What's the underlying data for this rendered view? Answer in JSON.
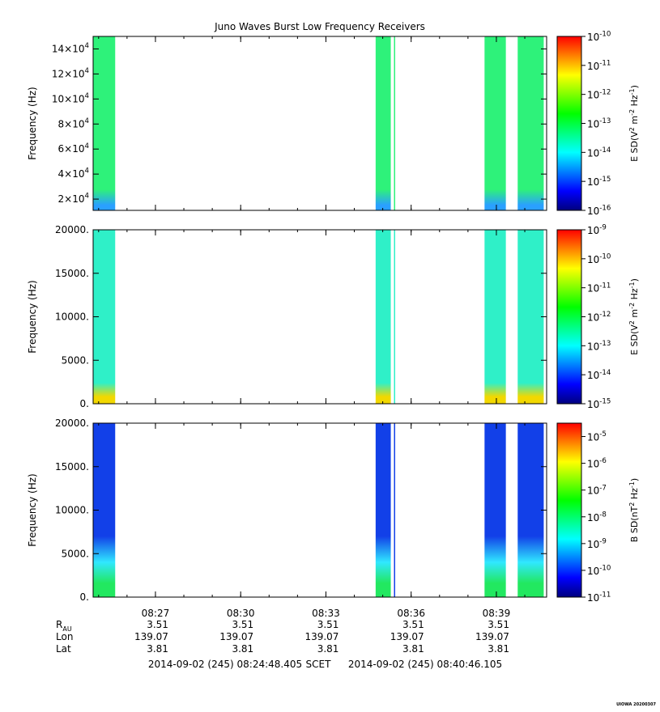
{
  "title": "Juno Waves Burst Low Frequency Receivers",
  "stamp": "UIOWA 20200307",
  "chart_data": [
    {
      "type": "heatmap",
      "name": "upper-panel",
      "ylabel": "Frequency (Hz)",
      "ylim": [
        11000,
        150000
      ],
      "yticks": [
        {
          "value": 20000,
          "base": "2×10",
          "exp": "4"
        },
        {
          "value": 40000,
          "base": "4×10",
          "exp": "4"
        },
        {
          "value": 60000,
          "base": "6×10",
          "exp": "4"
        },
        {
          "value": 80000,
          "base": "8×10",
          "exp": "4"
        },
        {
          "value": 100000,
          "base": "10×10",
          "exp": "4"
        },
        {
          "value": 120000,
          "base": "12×10",
          "exp": "4"
        },
        {
          "value": 140000,
          "base": "14×10",
          "exp": "4"
        }
      ],
      "colorbar": {
        "label": "E SD(V² m⁻² Hz⁻¹)",
        "label_parts": [
          "E SD(V",
          "2",
          " m",
          "-2",
          " Hz",
          "-1",
          ")"
        ],
        "log_min": -16,
        "log_max": -10,
        "ticks": [
          {
            "base": "10",
            "exp": "-10",
            "value": -10
          },
          {
            "base": "10",
            "exp": "-11",
            "value": -11
          },
          {
            "base": "10",
            "exp": "-12",
            "value": -12
          },
          {
            "base": "10",
            "exp": "-13",
            "value": -13
          },
          {
            "base": "10",
            "exp": "-14",
            "value": -14
          },
          {
            "base": "10",
            "exp": "-15",
            "value": -15
          },
          {
            "base": "10",
            "exp": "-16",
            "value": -16
          }
        ]
      },
      "fill_color": "#2ef27a",
      "bottom_color": "#2aa0ff"
    },
    {
      "type": "heatmap",
      "name": "middle-panel",
      "ylabel": "Frequency (Hz)",
      "ylim": [
        0,
        20000
      ],
      "yticks": [
        {
          "value": 0,
          "label": "0."
        },
        {
          "value": 5000,
          "label": "5000."
        },
        {
          "value": 10000,
          "label": "10000."
        },
        {
          "value": 15000,
          "label": "15000."
        },
        {
          "value": 20000,
          "label": "20000."
        }
      ],
      "colorbar": {
        "label": "E SD(V² m⁻² Hz⁻¹)",
        "label_parts": [
          "E SD(V",
          "2",
          " m",
          "-2",
          " Hz",
          "-1",
          ")"
        ],
        "log_min": -15,
        "log_max": -9,
        "ticks": [
          {
            "base": "10",
            "exp": "-9",
            "value": -9
          },
          {
            "base": "10",
            "exp": "-10",
            "value": -10
          },
          {
            "base": "10",
            "exp": "-11",
            "value": -11
          },
          {
            "base": "10",
            "exp": "-12",
            "value": -12
          },
          {
            "base": "10",
            "exp": "-13",
            "value": -13
          },
          {
            "base": "10",
            "exp": "-14",
            "value": -14
          },
          {
            "base": "10",
            "exp": "-15",
            "value": -15
          }
        ]
      },
      "fill_color": "#2ff0c8",
      "bottom_color": "#f2d800"
    },
    {
      "type": "heatmap",
      "name": "lower-panel",
      "ylabel": "Frequency (Hz)",
      "ylim": [
        0,
        20000
      ],
      "yticks": [
        {
          "value": 0,
          "label": "0."
        },
        {
          "value": 5000,
          "label": "5000."
        },
        {
          "value": 10000,
          "label": "10000."
        },
        {
          "value": 15000,
          "label": "15000."
        },
        {
          "value": 20000,
          "label": "20000."
        }
      ],
      "colorbar": {
        "label": "B SD(nT² Hz⁻¹)",
        "label_parts": [
          "B SD(nT",
          "2",
          " Hz",
          "-1",
          ")"
        ],
        "log_min": -11,
        "log_max": -4.5,
        "ticks": [
          {
            "base": "10",
            "exp": "-5",
            "value": -5
          },
          {
            "base": "10",
            "exp": "-6",
            "value": -6
          },
          {
            "base": "10",
            "exp": "-7",
            "value": -7
          },
          {
            "base": "10",
            "exp": "-8",
            "value": -8
          },
          {
            "base": "10",
            "exp": "-9",
            "value": -9
          },
          {
            "base": "10",
            "exp": "-10",
            "value": -10
          },
          {
            "base": "10",
            "exp": "-11",
            "value": -11
          }
        ]
      },
      "fill_color": "#1240e8",
      "bottom_color": "#22e860"
    }
  ],
  "time_axis": {
    "tmin": "08:24:48.405",
    "tmax": "08:40:46.105",
    "xlim_seconds": [
      0,
      957.7
    ],
    "ticks": [
      {
        "label": "08:27",
        "value": "08:27:00"
      },
      {
        "label": "08:30",
        "value": "08:30:00"
      },
      {
        "label": "08:33",
        "value": "08:33:00"
      },
      {
        "label": "08:36",
        "value": "08:36:00"
      },
      {
        "label": "08:39",
        "value": "08:39:00"
      }
    ],
    "bursts": [
      {
        "start": "08:24:48",
        "end": "08:25:35"
      },
      {
        "start": "08:34:45",
        "end": "08:35:17"
      },
      {
        "start": "08:38:35",
        "end": "08:39:20"
      },
      {
        "start": "08:39:45",
        "end": "08:40:40"
      }
    ],
    "gap_line": "08:35:25"
  },
  "ephemeris": {
    "rows": [
      {
        "label": "R",
        "sub": "AU",
        "values": [
          "3.51",
          "3.51",
          "3.51",
          "3.51",
          "3.51"
        ]
      },
      {
        "label": "Lon",
        "sub": "",
        "values": [
          "139.07",
          "139.07",
          "139.07",
          "139.07",
          "139.07"
        ]
      },
      {
        "label": "Lat",
        "sub": "",
        "values": [
          "3.81",
          "3.81",
          "3.81",
          "3.81",
          "3.81"
        ]
      }
    ]
  },
  "footer": {
    "start": "2014-09-02 (245) 08:24:48.405",
    "scet": "SCET",
    "end": "2014-09-02 (245) 08:40:46.105"
  }
}
